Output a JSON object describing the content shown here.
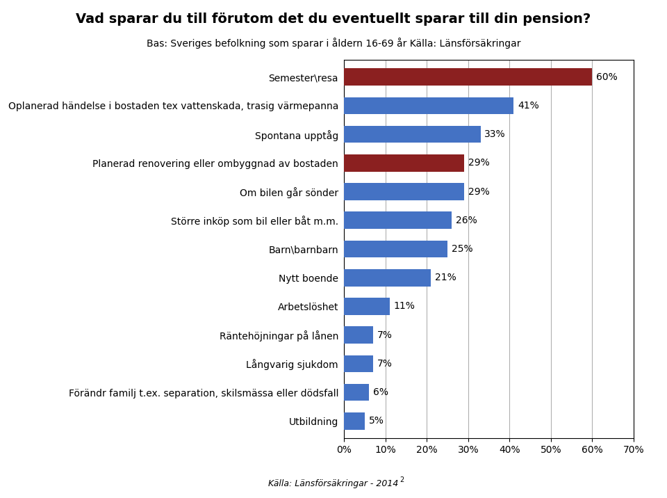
{
  "chart_data": {
    "type": "bar",
    "orientation": "horizontal",
    "title": "Vad sparar du till förutom det du eventuellt sparar till din pension?",
    "subtitle": "Bas: Sveriges befolkning som sparar i åldern 16-69 år Källa: Länsförsäkringar",
    "footer": "Källa: Länsförsäkringar - 2014",
    "annotations": [
      "2"
    ],
    "categories": [
      "Semester\\resa",
      "Oplanerad händelse i bostaden tex vattenskada, trasig värmepanna",
      "Spontana upptåg",
      "Planerad renovering eller ombyggnad av bostaden",
      "Om bilen går sönder",
      "Större inköp som bil eller båt m.m.",
      "Barn\\barnbarn",
      "Nytt boende",
      "Arbetslöshet",
      "Räntehöjningar på lånen",
      "Långvarig sjukdom",
      "Förändr familj t.ex. separation, skilsmässa eller dödsfall",
      "Utbildning"
    ],
    "values": [
      60,
      41,
      33,
      29,
      29,
      26,
      25,
      21,
      11,
      7,
      7,
      6,
      5
    ],
    "value_labels": [
      "60%",
      "41%",
      "33%",
      "29%",
      "29%",
      "26%",
      "25%",
      "21%",
      "11%",
      "7%",
      "7%",
      "6%",
      "5%"
    ],
    "data_labels": true,
    "colors": [
      "#8B2020",
      "#4472C4",
      "#4472C4",
      "#8B2020",
      "#4472C4",
      "#4472C4",
      "#4472C4",
      "#4472C4",
      "#4472C4",
      "#4472C4",
      "#4472C4",
      "#4472C4",
      "#4472C4"
    ],
    "xlim": [
      0,
      70
    ],
    "xticks": [
      {
        "value": 0,
        "label": "0%"
      },
      {
        "value": 10,
        "label": "10%"
      },
      {
        "value": 20,
        "label": "20%"
      },
      {
        "value": 30,
        "label": "30%"
      },
      {
        "value": 40,
        "label": "40%"
      },
      {
        "value": 50,
        "label": "50%"
      },
      {
        "value": 60,
        "label": "60%"
      },
      {
        "value": 70,
        "label": "70%"
      }
    ],
    "grid": true
  }
}
